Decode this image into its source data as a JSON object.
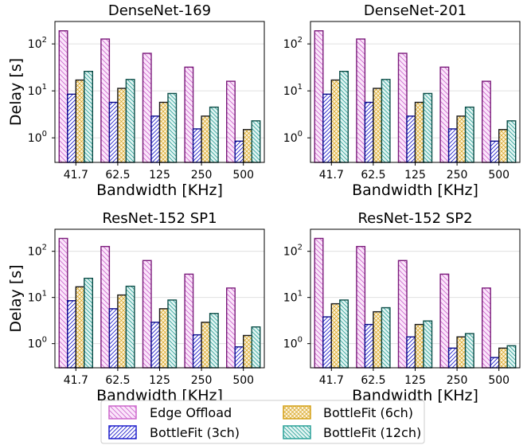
{
  "chart_data": {
    "legend": {
      "placement": "bottom-center",
      "entries": [
        {
          "name": "Edge Offload",
          "color": "#cc66cc"
        },
        {
          "name": "BottleFit (6ch)",
          "color": "#d4a017"
        },
        {
          "name": "BottleFit (3ch)",
          "color": "#1f1fcc"
        },
        {
          "name": "BottleFit (12ch)",
          "color": "#2aa198"
        }
      ]
    },
    "charts": [
      {
        "type": "bar",
        "title": "DenseNet-169",
        "xlabel": "Bandwidth [KHz]",
        "ylabel": "Delay [s]",
        "yscale": "log",
        "ylim": [
          0.3,
          300
        ],
        "yticks": [
          "10^0",
          "10^1",
          "10^2"
        ],
        "grid": true,
        "categories": [
          "41.7",
          "62.5",
          "125",
          "250",
          "500"
        ],
        "series": [
          {
            "name": "Edge Offload",
            "values": [
              190,
              127,
              63,
              32,
              16
            ]
          },
          {
            "name": "BottleFit (3ch)",
            "values": [
              8.5,
              5.7,
              2.9,
              1.55,
              0.85
            ]
          },
          {
            "name": "BottleFit (6ch)",
            "values": [
              17,
              11.3,
              5.7,
              2.9,
              1.5
            ]
          },
          {
            "name": "BottleFit (12ch)",
            "values": [
              26,
              17.5,
              8.8,
              4.5,
              2.3
            ]
          }
        ]
      },
      {
        "type": "bar",
        "title": "DenseNet-201",
        "xlabel": "Bandwidth [KHz]",
        "ylabel": "",
        "yscale": "log",
        "ylim": [
          0.3,
          300
        ],
        "yticks": [
          "10^0",
          "10^1",
          "10^2"
        ],
        "grid": true,
        "categories": [
          "41.7",
          "62.5",
          "125",
          "250",
          "500"
        ],
        "series": [
          {
            "name": "Edge Offload",
            "values": [
              190,
              127,
              63,
              32,
              16
            ]
          },
          {
            "name": "BottleFit (3ch)",
            "values": [
              8.5,
              5.7,
              2.9,
              1.55,
              0.85
            ]
          },
          {
            "name": "BottleFit (6ch)",
            "values": [
              17,
              11.3,
              5.7,
              2.9,
              1.5
            ]
          },
          {
            "name": "BottleFit (12ch)",
            "values": [
              26,
              17.5,
              8.8,
              4.5,
              2.3
            ]
          }
        ]
      },
      {
        "type": "bar",
        "title": "ResNet-152 SP1",
        "xlabel": "Bandwidth [KHz]",
        "ylabel": "Delay [s]",
        "yscale": "log",
        "ylim": [
          0.3,
          300
        ],
        "yticks": [
          "10^0",
          "10^1",
          "10^2"
        ],
        "grid": true,
        "categories": [
          "41.7",
          "62.5",
          "125",
          "250",
          "500"
        ],
        "series": [
          {
            "name": "Edge Offload",
            "values": [
              190,
              127,
              63,
              32,
              16
            ]
          },
          {
            "name": "BottleFit (3ch)",
            "values": [
              8.5,
              5.7,
              2.9,
              1.55,
              0.85
            ]
          },
          {
            "name": "BottleFit (6ch)",
            "values": [
              17,
              11.3,
              5.7,
              2.9,
              1.5
            ]
          },
          {
            "name": "BottleFit (12ch)",
            "values": [
              26,
              17.5,
              8.8,
              4.5,
              2.3
            ]
          }
        ]
      },
      {
        "type": "bar",
        "title": "ResNet-152 SP2",
        "xlabel": "Bandwidth [KHz]",
        "ylabel": "",
        "yscale": "log",
        "ylim": [
          0.3,
          300
        ],
        "yticks": [
          "10^0",
          "10^1",
          "10^2"
        ],
        "grid": true,
        "categories": [
          "41.7",
          "62.5",
          "125",
          "250",
          "500"
        ],
        "series": [
          {
            "name": "Edge Offload",
            "values": [
              190,
              127,
              63,
              32,
              16
            ]
          },
          {
            "name": "BottleFit (3ch)",
            "values": [
              3.8,
              2.6,
              1.4,
              0.8,
              0.5
            ]
          },
          {
            "name": "BottleFit (6ch)",
            "values": [
              7.3,
              4.9,
              2.6,
              1.4,
              0.8
            ]
          },
          {
            "name": "BottleFit (12ch)",
            "values": [
              8.8,
              6.0,
              3.1,
              1.65,
              0.9
            ]
          }
        ]
      }
    ]
  }
}
